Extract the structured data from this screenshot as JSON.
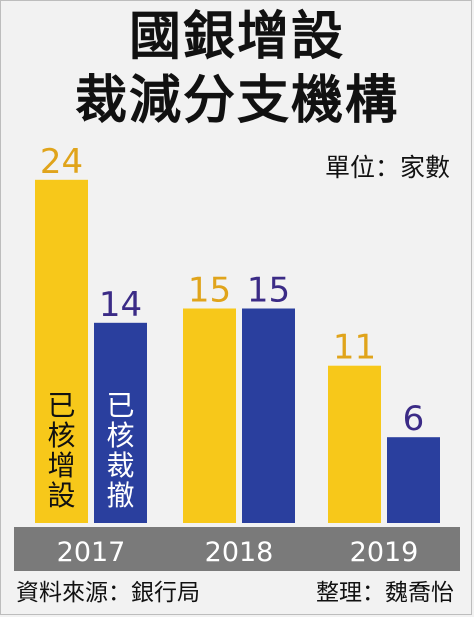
{
  "title_line1": "國銀增設",
  "title_line2": "裁減分支機構",
  "unit_label": "單位：家數",
  "source_label": "資料來源：銀行局",
  "editor_label": "整理：魏喬怡",
  "colors": {
    "added": "#f7c81a",
    "cut": "#2a3f9e",
    "added_label": "#e0a41b",
    "cut_label": "#3b2b86",
    "axis_band": "#7a7a7a"
  },
  "chart_data": {
    "type": "bar",
    "title": "國銀增設 裁減分支機構",
    "unit": "單位：家數",
    "categories": [
      "2017",
      "2018",
      "2019"
    ],
    "series": [
      {
        "name": "已核增設",
        "values": [
          24,
          15,
          11
        ]
      },
      {
        "name": "已核裁撤",
        "values": [
          14,
          15,
          6
        ]
      }
    ],
    "ylim": [
      0,
      24
    ],
    "legend_placement": "inside-bars"
  }
}
